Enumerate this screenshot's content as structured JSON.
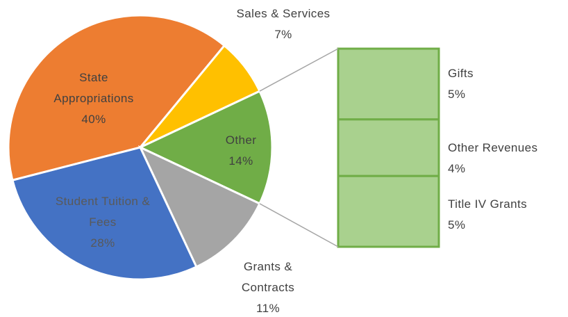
{
  "chart_data": {
    "type": "pie",
    "categories": [
      "State Appropriations",
      "Sales & Services",
      "Other",
      "Grants & Contracts",
      "Student Tuition & Fees"
    ],
    "values": [
      40,
      7,
      14,
      11,
      28
    ],
    "value_labels": [
      "40%",
      "7%",
      "14%",
      "11%",
      "28%"
    ],
    "colors": [
      "#ed7d31",
      "#ffc000",
      "#70ad47",
      "#a5a5a5",
      "#4472c4"
    ],
    "bar_of_pie": {
      "categories": [
        "Gifts",
        "Other Revenues",
        "Title IV Grants"
      ],
      "values": [
        5,
        4,
        5
      ],
      "value_labels": [
        "5%",
        "4%",
        "5%"
      ],
      "color": "#a9d18e",
      "edge_color": "#70ad47"
    }
  }
}
